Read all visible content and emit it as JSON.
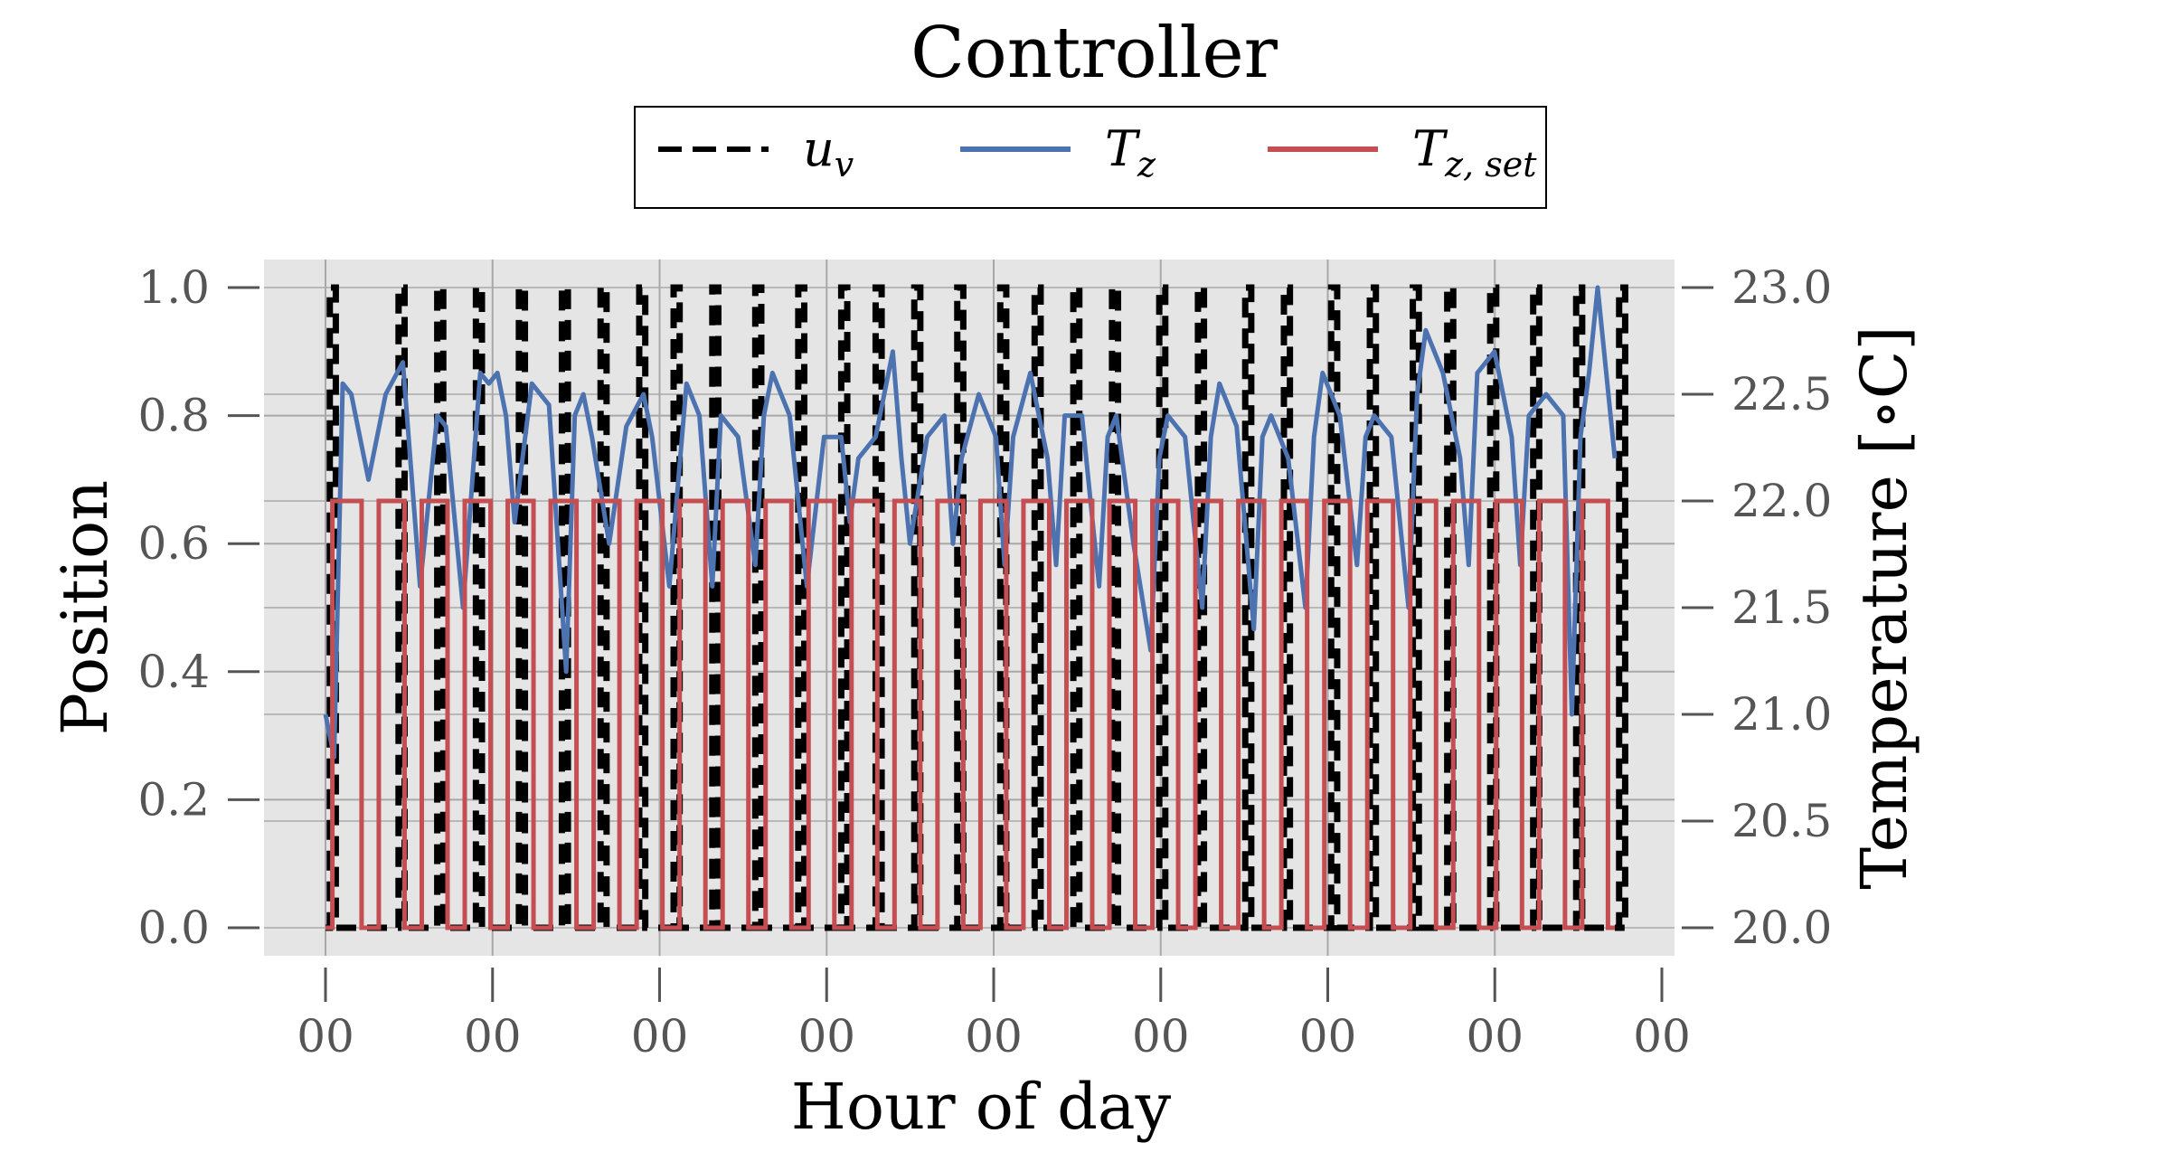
{
  "chart_data": {
    "type": "line",
    "title": "Controller",
    "xlabel": "Hour of day",
    "ylabel_left": "Position",
    "ylabel_right": "Temperature [∘C]",
    "ylim_left": [
      0.0,
      1.0
    ],
    "ylim_right": [
      20.0,
      23.0
    ],
    "yticks_left": [
      "0.0",
      "0.2",
      "0.4",
      "0.6",
      "0.8",
      "1.0"
    ],
    "yticks_right": [
      "20.0",
      "20.5",
      "21.0",
      "21.5",
      "22.0",
      "22.5",
      "23.0"
    ],
    "xticks": [
      "00",
      "00",
      "00",
      "00",
      "00",
      "00",
      "00",
      "00",
      "00"
    ],
    "grid": true,
    "legend_placement": "top-center",
    "series": [
      {
        "name": "u_v",
        "legend_main": "u",
        "legend_sub": "v",
        "axis": "left",
        "color": "#000000",
        "style": "dashed",
        "description": "Valve position switching between 0 and 1 each cycle",
        "pulses": [
          [
            0.05,
            0.12
          ],
          [
            0.85,
            0.92
          ],
          [
            1.3,
            1.37
          ],
          [
            1.75,
            1.82
          ],
          [
            2.25,
            2.32
          ],
          [
            2.75,
            2.82
          ],
          [
            3.2,
            3.27
          ],
          [
            3.65,
            3.72
          ],
          [
            4.05,
            4.12
          ],
          [
            4.5,
            4.57
          ],
          [
            5.0,
            5.07
          ],
          [
            5.5,
            5.57
          ],
          [
            6.0,
            6.07
          ],
          [
            6.4,
            6.47
          ],
          [
            6.85,
            6.92
          ],
          [
            7.35,
            7.42
          ],
          [
            7.85,
            7.92
          ],
          [
            8.25,
            8.32
          ],
          [
            8.7,
            8.77
          ],
          [
            9.15,
            9.22
          ],
          [
            9.7,
            9.77
          ],
          [
            10.15,
            10.22
          ],
          [
            10.7,
            10.77
          ],
          [
            11.15,
            11.22
          ],
          [
            11.7,
            11.77
          ],
          [
            12.15,
            12.22
          ],
          [
            12.65,
            12.72
          ],
          [
            13.05,
            13.12
          ],
          [
            13.55,
            13.62
          ],
          [
            14.05,
            14.12
          ],
          [
            14.55,
            14.62
          ],
          [
            15.05,
            15.12
          ]
        ]
      },
      {
        "name": "T_z",
        "legend_main": "T",
        "legend_sub": "z",
        "axis": "right",
        "color": "#4c72b0",
        "style": "solid",
        "x": [
          0.0,
          0.1,
          0.2,
          0.3,
          0.4,
          0.5,
          0.7,
          0.9,
          1.1,
          1.3,
          1.4,
          1.6,
          1.8,
          1.9,
          2.0,
          2.1,
          2.2,
          2.4,
          2.6,
          2.8,
          2.9,
          3.0,
          3.1,
          3.3,
          3.5,
          3.7,
          3.8,
          4.0,
          4.2,
          4.35,
          4.5,
          4.6,
          4.8,
          5.0,
          5.1,
          5.2,
          5.4,
          5.6,
          5.8,
          6.0,
          6.1,
          6.2,
          6.4,
          6.6,
          6.7,
          6.8,
          7.0,
          7.2,
          7.3,
          7.4,
          7.6,
          7.8,
          7.9,
          8.0,
          8.2,
          8.4,
          8.5,
          8.6,
          8.8,
          9.0,
          9.1,
          9.2,
          9.4,
          9.6,
          9.7,
          9.8,
          10.0,
          10.2,
          10.3,
          10.4,
          10.6,
          10.8,
          10.9,
          11.0,
          11.2,
          11.4,
          11.5,
          11.6,
          11.8,
          12.0,
          12.1,
          12.2,
          12.4,
          12.6,
          12.7,
          12.8,
          13.0,
          13.2,
          13.3,
          13.4,
          13.6,
          13.8,
          13.9,
          14.0,
          14.2,
          14.4,
          14.5,
          14.6,
          14.7,
          14.8,
          14.9,
          15.0
        ],
        "y": [
          21.0,
          20.8,
          22.55,
          22.5,
          22.3,
          22.1,
          22.5,
          22.65,
          21.6,
          22.4,
          22.35,
          21.5,
          22.6,
          22.55,
          22.6,
          22.4,
          21.9,
          22.55,
          22.45,
          21.2,
          22.4,
          22.5,
          22.3,
          21.8,
          22.35,
          22.5,
          22.3,
          21.6,
          22.55,
          22.4,
          21.6,
          22.4,
          22.3,
          21.7,
          22.4,
          22.6,
          22.4,
          21.6,
          22.3,
          22.3,
          21.9,
          22.2,
          22.3,
          22.7,
          22.2,
          21.8,
          22.3,
          22.4,
          21.8,
          22.2,
          22.5,
          22.3,
          21.7,
          22.3,
          22.6,
          22.2,
          21.7,
          22.4,
          22.4,
          21.6,
          22.3,
          22.4,
          21.8,
          21.3,
          22.2,
          22.4,
          22.3,
          21.5,
          22.3,
          22.55,
          22.35,
          21.4,
          22.3,
          22.4,
          22.2,
          21.5,
          22.3,
          22.6,
          22.4,
          21.7,
          22.3,
          22.4,
          22.3,
          21.5,
          22.5,
          22.8,
          22.6,
          22.2,
          21.7,
          22.6,
          22.7,
          22.3,
          21.7,
          22.4,
          22.5,
          22.4,
          21.0,
          22.3,
          22.6,
          23.0,
          22.6,
          22.2
        ]
      },
      {
        "name": "T_z,set",
        "legend_main": "T",
        "legend_sub": "z, set",
        "axis": "right",
        "color": "#c44e52",
        "style": "solid",
        "description": "Setpoint toggling between 20.0 and 22.0 °C",
        "pulses": [
          [
            0.08,
            0.42
          ],
          [
            0.62,
            0.92
          ],
          [
            1.12,
            1.42
          ],
          [
            1.62,
            1.92
          ],
          [
            2.12,
            2.42
          ],
          [
            2.62,
            2.92
          ],
          [
            3.12,
            3.42
          ],
          [
            3.62,
            3.92
          ],
          [
            4.12,
            4.42
          ],
          [
            4.62,
            4.92
          ],
          [
            5.12,
            5.42
          ],
          [
            5.62,
            5.92
          ],
          [
            6.12,
            6.42
          ],
          [
            6.62,
            6.92
          ],
          [
            7.12,
            7.42
          ],
          [
            7.62,
            7.92
          ],
          [
            8.12,
            8.42
          ],
          [
            8.62,
            8.92
          ],
          [
            9.12,
            9.42
          ],
          [
            9.62,
            9.92
          ],
          [
            10.12,
            10.42
          ],
          [
            10.62,
            10.92
          ],
          [
            11.12,
            11.42
          ],
          [
            11.62,
            11.92
          ],
          [
            12.12,
            12.42
          ],
          [
            12.62,
            12.92
          ],
          [
            13.12,
            13.42
          ],
          [
            13.62,
            13.92
          ],
          [
            14.12,
            14.42
          ],
          [
            14.62,
            14.92
          ]
        ],
        "low": 20.0,
        "high": 22.0
      }
    ],
    "x_range": [
      -0.7,
      15.8
    ],
    "x_end": 15.0
  }
}
